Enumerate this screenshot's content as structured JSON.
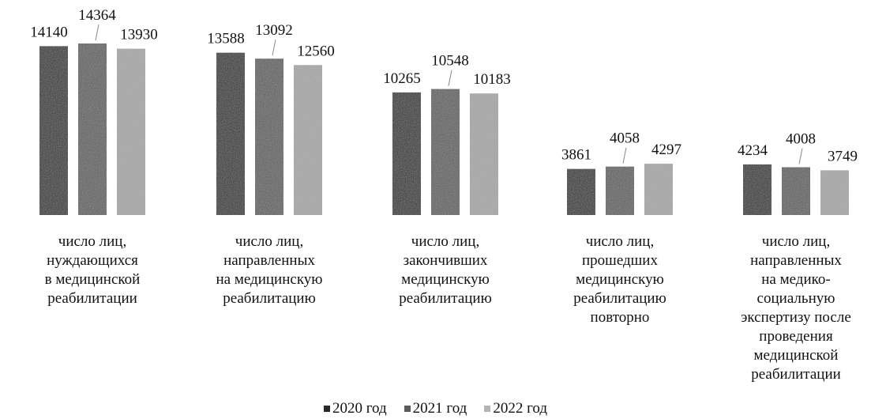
{
  "chart_data": {
    "type": "bar",
    "title": "",
    "xlabel": "",
    "ylabel": "",
    "ylim": [
      0,
      14364
    ],
    "grid": false,
    "legend_position": "bottom",
    "categories": [
      "число лиц,\nнуждающихся\nв медицинской\nреабилитации",
      "число лиц,\nнаправленных\nна медицинскую\nреабилитацию",
      "число лиц,\nзакончивших\nмедицинскую\nреабилитацию",
      "число лиц,\nпрошедших\nмедицинскую\nреабилитацию\nповторно",
      "число лиц,\nнаправленных\nна медико-\nсоциальную\nэкспертизу после\nпроведения\nмедицинской\nреабилитации"
    ],
    "series": [
      {
        "name": "2020 год",
        "color": "#2a2a2a",
        "values": [
          14140,
          13588,
          10265,
          3861,
          4234
        ]
      },
      {
        "name": "2021 год",
        "color": "#5b5b5b",
        "values": [
          14364,
          13092,
          10548,
          4058,
          4008
        ]
      },
      {
        "name": "2022 год",
        "color": "#b4b4b4",
        "values": [
          13930,
          12560,
          10183,
          4297,
          3749
        ]
      }
    ],
    "data_labels": [
      [
        "14140",
        "14364",
        "13930"
      ],
      [
        "13588",
        "13092",
        "12560"
      ],
      [
        "10265",
        "10548",
        "10183"
      ],
      [
        "3861",
        "4058",
        "4297"
      ],
      [
        "4234",
        "4008",
        "3749"
      ]
    ]
  }
}
